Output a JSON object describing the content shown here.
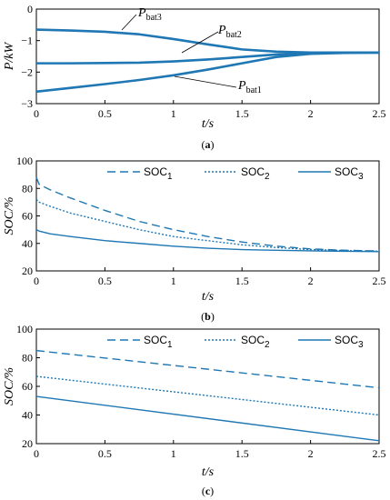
{
  "chart_data": [
    {
      "id": "a",
      "type": "line",
      "caption": "(a)",
      "xlabel": "t/s",
      "ylabel": "P/kW",
      "xlim": [
        0,
        2.5
      ],
      "ylim": [
        -3,
        0
      ],
      "xticks": [
        "0",
        "0.5",
        "1",
        "1.5",
        "2",
        "2.5"
      ],
      "yticks": [
        "0",
        "-1",
        "-2",
        "-3"
      ],
      "grid": false,
      "color": "#1f77b4",
      "series": [
        {
          "name": "P_bat3",
          "label_main": "P",
          "label_sub": "bat3",
          "style": "solid",
          "x": [
            0,
            0.25,
            0.5,
            0.75,
            1.0,
            1.25,
            1.5,
            1.75,
            2.0,
            2.25,
            2.5
          ],
          "y": [
            -0.65,
            -0.68,
            -0.72,
            -0.8,
            -0.95,
            -1.12,
            -1.28,
            -1.35,
            -1.38,
            -1.38,
            -1.38
          ]
        },
        {
          "name": "P_bat2",
          "label_main": "P",
          "label_sub": "bat2",
          "style": "solid",
          "x": [
            0,
            0.25,
            0.5,
            0.75,
            1.0,
            1.25,
            1.5,
            1.75,
            2.0,
            2.25,
            2.5
          ],
          "y": [
            -1.72,
            -1.72,
            -1.71,
            -1.7,
            -1.66,
            -1.6,
            -1.52,
            -1.44,
            -1.4,
            -1.38,
            -1.38
          ]
        },
        {
          "name": "P_bat1",
          "label_main": "P",
          "label_sub": "bat1",
          "style": "solid",
          "x": [
            0,
            0.25,
            0.5,
            0.75,
            1.0,
            1.25,
            1.5,
            1.75,
            2.0,
            2.25,
            2.5
          ],
          "y": [
            -2.62,
            -2.5,
            -2.38,
            -2.25,
            -2.1,
            -1.92,
            -1.72,
            -1.52,
            -1.42,
            -1.39,
            -1.38
          ]
        }
      ]
    },
    {
      "id": "b",
      "type": "line",
      "caption": "(b)",
      "xlabel": "t/s",
      "ylabel": "SOC/%",
      "xlim": [
        0,
        2.5
      ],
      "ylim": [
        20,
        100
      ],
      "xticks": [
        "0",
        "0.5",
        "1",
        "1.5",
        "2",
        "2.5"
      ],
      "yticks": [
        "20",
        "40",
        "60",
        "80",
        "100"
      ],
      "grid": false,
      "legend": "top-right",
      "color": "#1f77b4",
      "series": [
        {
          "name": "SOC1",
          "label_main": "SOC",
          "label_sub": "1",
          "style": "dashed",
          "x": [
            0,
            0.02,
            0.1,
            0.25,
            0.5,
            0.75,
            1.0,
            1.25,
            1.5,
            1.75,
            2.0,
            2.25,
            2.5
          ],
          "y": [
            88,
            83,
            79,
            73,
            64,
            56,
            50,
            45,
            41,
            38,
            36,
            35,
            34.5
          ]
        },
        {
          "name": "SOC2",
          "label_main": "SOC",
          "label_sub": "2",
          "style": "dotted",
          "x": [
            0,
            0.02,
            0.1,
            0.25,
            0.5,
            0.75,
            1.0,
            1.25,
            1.5,
            1.75,
            2.0,
            2.25,
            2.5
          ],
          "y": [
            72,
            70,
            67,
            62,
            56,
            50,
            45,
            42,
            39,
            37,
            35.5,
            34.8,
            34.3
          ]
        },
        {
          "name": "SOC3",
          "label_main": "SOC",
          "label_sub": "3",
          "style": "solid",
          "x": [
            0,
            0.02,
            0.1,
            0.25,
            0.5,
            0.75,
            1.0,
            1.25,
            1.5,
            1.75,
            2.0,
            2.25,
            2.5
          ],
          "y": [
            50,
            49,
            47,
            45,
            42,
            40,
            38,
            36.5,
            35.5,
            35,
            34.6,
            34.3,
            34
          ]
        }
      ]
    },
    {
      "id": "c",
      "type": "line",
      "caption": "(c)",
      "xlabel": "t/s",
      "ylabel": "SOC/%",
      "xlim": [
        0,
        2.5
      ],
      "ylim": [
        20,
        100
      ],
      "xticks": [
        "0",
        "0.5",
        "1",
        "1.5",
        "2",
        "2.5"
      ],
      "yticks": [
        "20",
        "40",
        "60",
        "80",
        "100"
      ],
      "grid": false,
      "legend": "top-right",
      "color": "#1f77b4",
      "series": [
        {
          "name": "SOC1",
          "label_main": "SOC",
          "label_sub": "1",
          "style": "dashed",
          "x": [
            0,
            2.5
          ],
          "y": [
            85,
            59
          ]
        },
        {
          "name": "SOC2",
          "label_main": "SOC",
          "label_sub": "2",
          "style": "dotted",
          "x": [
            0,
            2.5
          ],
          "y": [
            67,
            40
          ]
        },
        {
          "name": "SOC3",
          "label_main": "SOC",
          "label_sub": "3",
          "style": "solid",
          "x": [
            0,
            2.5
          ],
          "y": [
            53,
            22
          ]
        }
      ]
    }
  ]
}
